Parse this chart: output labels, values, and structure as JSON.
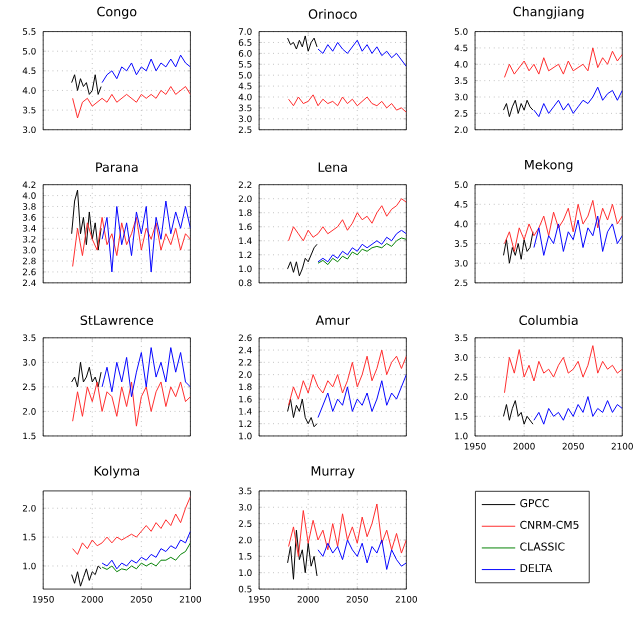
{
  "chart_data": [
    {
      "type": "line",
      "title": "Congo",
      "xlim": [
        1950,
        2100
      ],
      "xticks": [
        1950,
        2000,
        2050,
        2100
      ],
      "ylim": [
        3.0,
        5.5
      ],
      "yticks": [
        {
          "value": 3.0,
          "label": "3.0"
        },
        {
          "value": 3.5,
          "label": "3.5"
        },
        {
          "value": 4.0,
          "label": "4.0"
        },
        {
          "value": 4.5,
          "label": "4.5"
        },
        {
          "value": 5.0,
          "label": "5.0"
        },
        {
          "value": 5.5,
          "label": "5.5"
        }
      ],
      "grid": true,
      "tick_labels": "y",
      "series": [
        {
          "color": "#000000",
          "x": [
            1979,
            1982,
            1985,
            1988,
            1991,
            1994,
            1997,
            2000,
            2003,
            2006,
            2009
          ],
          "values": [
            4.2,
            4.4,
            4.0,
            4.3,
            4.1,
            4.2,
            3.9,
            4.0,
            4.4,
            3.9,
            4.1
          ]
        },
        {
          "color": "#ff2a2a",
          "x": [
            1980,
            1985,
            1990,
            1995,
            2000,
            2005,
            2010,
            2015,
            2020,
            2025,
            2030,
            2035,
            2040,
            2045,
            2050,
            2055,
            2060,
            2065,
            2070,
            2075,
            2080,
            2085,
            2090,
            2095,
            2100
          ],
          "values": [
            3.8,
            3.3,
            3.7,
            3.8,
            3.6,
            3.7,
            3.8,
            3.7,
            3.9,
            3.7,
            3.8,
            3.9,
            3.8,
            3.7,
            3.9,
            3.8,
            3.9,
            3.8,
            4.0,
            3.9,
            4.1,
            3.9,
            4.0,
            4.1,
            3.9
          ]
        },
        {
          "color": "#0000ff",
          "x": [
            2010,
            2015,
            2020,
            2025,
            2030,
            2035,
            2040,
            2045,
            2050,
            2055,
            2060,
            2065,
            2070,
            2075,
            2080,
            2085,
            2090,
            2095,
            2100
          ],
          "values": [
            4.2,
            4.4,
            4.5,
            4.3,
            4.6,
            4.5,
            4.7,
            4.4,
            4.6,
            4.5,
            4.8,
            4.5,
            4.7,
            4.6,
            4.8,
            4.6,
            4.9,
            4.7,
            4.6
          ]
        }
      ]
    },
    {
      "type": "line",
      "title": "Orinoco",
      "xlim": [
        1950,
        2100
      ],
      "xticks": [
        1950,
        2000,
        2050,
        2100
      ],
      "ylim": [
        2.5,
        7.0
      ],
      "yticks": [
        2.5,
        {
          "value": 3.0,
          "label": "3.0"
        },
        3.5,
        {
          "value": 4.0,
          "label": "4.0"
        },
        4.5,
        {
          "value": 5.0,
          "label": "5.0"
        },
        5.5,
        {
          "value": 6.0,
          "label": "6.0"
        },
        6.5,
        {
          "value": 7.0,
          "label": "7.0"
        }
      ],
      "grid": true,
      "tick_labels": "y",
      "series": [
        {
          "color": "#000000",
          "x": [
            1979,
            1982,
            1985,
            1988,
            1991,
            1994,
            1997,
            2000,
            2003,
            2006,
            2009
          ],
          "values": [
            6.7,
            6.4,
            6.5,
            6.2,
            6.6,
            6.3,
            6.8,
            6.1,
            6.5,
            6.7,
            6.3
          ]
        },
        {
          "color": "#ff2a2a",
          "x": [
            1980,
            1985,
            1990,
            1995,
            2000,
            2005,
            2010,
            2015,
            2020,
            2025,
            2030,
            2035,
            2040,
            2045,
            2050,
            2055,
            2060,
            2065,
            2070,
            2075,
            2080,
            2085,
            2090,
            2095,
            2100
          ],
          "values": [
            3.9,
            3.6,
            4.0,
            3.7,
            3.8,
            4.1,
            3.6,
            3.9,
            3.7,
            3.8,
            3.6,
            4.0,
            3.7,
            3.9,
            3.6,
            3.8,
            4.0,
            3.7,
            3.6,
            3.8,
            3.5,
            3.7,
            3.4,
            3.5,
            3.3
          ]
        },
        {
          "color": "#0000ff",
          "x": [
            2010,
            2015,
            2020,
            2025,
            2030,
            2035,
            2040,
            2045,
            2050,
            2055,
            2060,
            2065,
            2070,
            2075,
            2080,
            2085,
            2090,
            2095,
            2100
          ],
          "values": [
            6.2,
            6.0,
            6.4,
            6.1,
            6.5,
            6.2,
            6.0,
            6.3,
            6.6,
            6.1,
            6.4,
            6.0,
            6.3,
            5.9,
            6.1,
            5.8,
            6.0,
            5.7,
            5.4
          ]
        }
      ]
    },
    {
      "type": "line",
      "title": "Changjiang",
      "xlim": [
        1950,
        2100
      ],
      "xticks": [
        1950,
        2000,
        2050,
        2100
      ],
      "ylim": [
        2.0,
        5.0
      ],
      "yticks": [
        {
          "value": 2.0,
          "label": "2.0"
        },
        2.5,
        {
          "value": 3.0,
          "label": "3.0"
        },
        3.5,
        {
          "value": 4.0,
          "label": "4.0"
        },
        4.5,
        {
          "value": 5.0,
          "label": "5.0"
        }
      ],
      "grid": true,
      "tick_labels": "y",
      "series": [
        {
          "color": "#000000",
          "x": [
            1979,
            1982,
            1985,
            1988,
            1991,
            1994,
            1997,
            2000,
            2003,
            2006,
            2009
          ],
          "values": [
            2.6,
            2.8,
            2.4,
            2.7,
            2.9,
            2.5,
            2.8,
            2.6,
            2.9,
            2.7,
            2.6
          ]
        },
        {
          "color": "#ff2a2a",
          "x": [
            1980,
            1985,
            1990,
            1995,
            2000,
            2005,
            2010,
            2015,
            2020,
            2025,
            2030,
            2035,
            2040,
            2045,
            2050,
            2055,
            2060,
            2065,
            2070,
            2075,
            2080,
            2085,
            2090,
            2095,
            2100
          ],
          "values": [
            3.6,
            4.0,
            3.7,
            3.9,
            4.1,
            3.8,
            4.0,
            3.7,
            4.2,
            3.8,
            3.9,
            4.0,
            3.7,
            4.1,
            3.8,
            3.9,
            4.0,
            3.8,
            4.5,
            3.9,
            4.2,
            4.0,
            4.4,
            4.1,
            4.3
          ]
        },
        {
          "color": "#0000ff",
          "x": [
            2010,
            2015,
            2020,
            2025,
            2030,
            2035,
            2040,
            2045,
            2050,
            2055,
            2060,
            2065,
            2070,
            2075,
            2080,
            2085,
            2090,
            2095,
            2100
          ],
          "values": [
            2.6,
            2.4,
            2.8,
            2.5,
            2.7,
            2.9,
            2.6,
            2.8,
            2.5,
            2.7,
            2.9,
            2.8,
            3.0,
            3.3,
            2.9,
            3.1,
            3.2,
            2.9,
            3.2
          ]
        }
      ]
    },
    {
      "type": "line",
      "title": "Parana",
      "xlim": [
        1950,
        2100
      ],
      "xticks": [
        1950,
        2000,
        2050,
        2100
      ],
      "ylim": [
        2.4,
        4.2
      ],
      "yticks": [
        2.4,
        2.6,
        2.8,
        {
          "value": 3.0,
          "label": "3.0"
        },
        3.2,
        3.4,
        3.6,
        3.8,
        {
          "value": 4.0,
          "label": "4.0"
        },
        4.2
      ],
      "grid": true,
      "tick_labels": "y",
      "series": [
        {
          "color": "#000000",
          "x": [
            1979,
            1982,
            1985,
            1988,
            1991,
            1994,
            1997,
            2000,
            2003,
            2006,
            2009
          ],
          "values": [
            3.3,
            3.9,
            4.1,
            3.3,
            3.6,
            3.1,
            3.7,
            3.2,
            3.5,
            3.0,
            3.4
          ]
        },
        {
          "color": "#ff2a2a",
          "x": [
            1980,
            1985,
            1990,
            1995,
            2000,
            2005,
            2010,
            2015,
            2020,
            2025,
            2030,
            2035,
            2040,
            2045,
            2050,
            2055,
            2060,
            2065,
            2070,
            2075,
            2080,
            2085,
            2090,
            2095,
            2100
          ],
          "values": [
            2.7,
            3.4,
            2.9,
            3.5,
            3.2,
            3.0,
            3.6,
            3.1,
            3.3,
            2.9,
            3.5,
            3.1,
            3.3,
            3.6,
            3.0,
            3.4,
            3.2,
            3.5,
            3.0,
            3.3,
            3.1,
            3.4,
            3.0,
            3.3,
            3.2
          ]
        },
        {
          "color": "#0000ff",
          "x": [
            2010,
            2015,
            2020,
            2025,
            2030,
            2035,
            2040,
            2045,
            2050,
            2055,
            2060,
            2065,
            2070,
            2075,
            2080,
            2085,
            2090,
            2095,
            2100
          ],
          "values": [
            3.2,
            3.6,
            2.6,
            3.8,
            3.1,
            3.5,
            2.9,
            3.7,
            3.3,
            3.8,
            2.6,
            3.6,
            3.2,
            3.9,
            3.3,
            3.7,
            3.4,
            3.8,
            3.4
          ]
        }
      ]
    },
    {
      "type": "line",
      "title": "Lena",
      "xlim": [
        1950,
        2100
      ],
      "xticks": [
        1950,
        2000,
        2050,
        2100
      ],
      "ylim": [
        0.8,
        2.2
      ],
      "yticks": [
        0.8,
        {
          "value": 1.0,
          "label": "1.0"
        },
        1.2,
        1.4,
        1.6,
        1.8,
        {
          "value": 2.0,
          "label": "2.0"
        },
        2.2
      ],
      "grid": true,
      "tick_labels": "y",
      "series": [
        {
          "color": "#000000",
          "x": [
            1979,
            1982,
            1985,
            1988,
            1991,
            1994,
            1997,
            2000,
            2003,
            2006,
            2009
          ],
          "values": [
            1.0,
            1.1,
            0.95,
            1.1,
            0.9,
            1.0,
            1.15,
            1.1,
            1.2,
            1.3,
            1.35
          ]
        },
        {
          "color": "#ff2a2a",
          "x": [
            1980,
            1985,
            1990,
            1995,
            2000,
            2005,
            2010,
            2015,
            2020,
            2025,
            2030,
            2035,
            2040,
            2045,
            2050,
            2055,
            2060,
            2065,
            2070,
            2075,
            2080,
            2085,
            2090,
            2095,
            2100
          ],
          "values": [
            1.4,
            1.6,
            1.5,
            1.4,
            1.55,
            1.45,
            1.5,
            1.6,
            1.5,
            1.55,
            1.6,
            1.7,
            1.55,
            1.65,
            1.8,
            1.7,
            1.75,
            1.65,
            1.8,
            1.9,
            1.75,
            1.85,
            1.9,
            2.0,
            1.95
          ]
        },
        {
          "color": "#008000",
          "x": [
            2010,
            2015,
            2020,
            2025,
            2030,
            2035,
            2040,
            2045,
            2050,
            2055,
            2060,
            2065,
            2070,
            2075,
            2080,
            2085,
            2090,
            2095,
            2100
          ],
          "values": [
            1.08,
            1.12,
            1.06,
            1.15,
            1.1,
            1.18,
            1.14,
            1.24,
            1.2,
            1.28,
            1.25,
            1.3,
            1.32,
            1.3,
            1.36,
            1.32,
            1.4,
            1.44,
            1.42
          ]
        },
        {
          "color": "#0000ff",
          "x": [
            2010,
            2015,
            2020,
            2025,
            2030,
            2035,
            2040,
            2045,
            2050,
            2055,
            2060,
            2065,
            2070,
            2075,
            2080,
            2085,
            2090,
            2095,
            2100
          ],
          "values": [
            1.1,
            1.15,
            1.1,
            1.2,
            1.15,
            1.25,
            1.2,
            1.3,
            1.25,
            1.35,
            1.3,
            1.35,
            1.4,
            1.35,
            1.45,
            1.4,
            1.5,
            1.55,
            1.5
          ]
        }
      ]
    },
    {
      "type": "line",
      "title": "Mekong",
      "xlim": [
        1950,
        2100
      ],
      "xticks": [
        1950,
        2000,
        2050,
        2100
      ],
      "ylim": [
        2.5,
        5.0
      ],
      "yticks": [
        2.5,
        {
          "value": 3.0,
          "label": "3.0"
        },
        3.5,
        {
          "value": 4.0,
          "label": "4.0"
        },
        4.5,
        {
          "value": 5.0,
          "label": "5.0"
        }
      ],
      "grid": true,
      "tick_labels": "y",
      "series": [
        {
          "color": "#000000",
          "x": [
            1979,
            1982,
            1985,
            1988,
            1991,
            1994,
            1997,
            2000,
            2003,
            2006,
            2009
          ],
          "values": [
            3.2,
            3.6,
            3.0,
            3.4,
            3.2,
            3.5,
            3.1,
            3.6,
            3.3,
            3.4,
            3.8
          ]
        },
        {
          "color": "#ff2a2a",
          "x": [
            1980,
            1985,
            1990,
            1995,
            2000,
            2005,
            2010,
            2015,
            2020,
            2025,
            2030,
            2035,
            2040,
            2045,
            2050,
            2055,
            2060,
            2065,
            2070,
            2075,
            2080,
            2085,
            2090,
            2095,
            2100
          ],
          "values": [
            3.5,
            3.8,
            3.3,
            3.9,
            3.6,
            4.0,
            3.7,
            3.9,
            4.2,
            3.7,
            4.3,
            3.9,
            4.1,
            4.4,
            3.8,
            4.5,
            4.0,
            4.2,
            4.6,
            3.9,
            4.4,
            4.1,
            4.5,
            4.0,
            4.2
          ]
        },
        {
          "color": "#0000ff",
          "x": [
            2010,
            2015,
            2020,
            2025,
            2030,
            2035,
            2040,
            2045,
            2050,
            2055,
            2060,
            2065,
            2070,
            2075,
            2080,
            2085,
            2090,
            2095,
            2100
          ],
          "values": [
            3.4,
            3.9,
            3.2,
            3.7,
            3.5,
            4.0,
            3.3,
            3.8,
            3.6,
            4.1,
            3.4,
            3.9,
            3.7,
            4.2,
            3.3,
            3.8,
            4.0,
            3.5,
            3.7
          ]
        }
      ]
    },
    {
      "type": "line",
      "title": "StLawrence",
      "xlim": [
        1950,
        2100
      ],
      "xticks": [
        1950,
        2000,
        2050,
        2100
      ],
      "ylim": [
        1.5,
        3.5
      ],
      "yticks": [
        1.5,
        {
          "value": 2.0,
          "label": "2.0"
        },
        2.5,
        {
          "value": 3.0,
          "label": "3.0"
        },
        3.5
      ],
      "grid": true,
      "tick_labels": "y",
      "series": [
        {
          "color": "#000000",
          "x": [
            1979,
            1982,
            1985,
            1988,
            1991,
            1994,
            1997,
            2000,
            2003,
            2006,
            2009
          ],
          "values": [
            2.6,
            2.7,
            2.5,
            3.0,
            2.6,
            2.7,
            2.9,
            2.6,
            2.7,
            2.5,
            2.8
          ]
        },
        {
          "color": "#ff2a2a",
          "x": [
            1980,
            1985,
            1990,
            1995,
            2000,
            2005,
            2010,
            2015,
            2020,
            2025,
            2030,
            2035,
            2040,
            2045,
            2050,
            2055,
            2060,
            2065,
            2070,
            2075,
            2080,
            2085,
            2090,
            2095,
            2100
          ],
          "values": [
            1.8,
            2.4,
            1.9,
            2.5,
            2.2,
            2.6,
            2.0,
            2.4,
            2.3,
            1.9,
            2.5,
            2.1,
            2.6,
            1.7,
            2.3,
            2.5,
            2.0,
            2.4,
            2.6,
            2.1,
            2.5,
            2.3,
            2.6,
            2.2,
            2.3
          ]
        },
        {
          "color": "#0000ff",
          "x": [
            2010,
            2015,
            2020,
            2025,
            2030,
            2035,
            2040,
            2045,
            2050,
            2055,
            2060,
            2065,
            2070,
            2075,
            2080,
            2085,
            2090,
            2095,
            2100
          ],
          "values": [
            2.5,
            2.9,
            2.4,
            3.0,
            2.6,
            3.1,
            2.3,
            2.8,
            3.2,
            2.5,
            3.3,
            2.7,
            3.0,
            2.6,
            3.3,
            2.8,
            3.2,
            2.6,
            2.5
          ]
        }
      ]
    },
    {
      "type": "line",
      "title": "Amur",
      "xlim": [
        1950,
        2100
      ],
      "xticks": [
        1950,
        2000,
        2050,
        2100
      ],
      "ylim": [
        1.0,
        2.6
      ],
      "yticks": [
        {
          "value": 1.0,
          "label": "1.0"
        },
        1.2,
        1.4,
        1.6,
        1.8,
        {
          "value": 2.0,
          "label": "2.0"
        },
        2.2,
        2.4,
        2.6
      ],
      "grid": true,
      "tick_labels": "y",
      "series": [
        {
          "color": "#000000",
          "x": [
            1979,
            1982,
            1985,
            1988,
            1991,
            1994,
            1997,
            2000,
            2003,
            2006,
            2009
          ],
          "values": [
            1.4,
            1.6,
            1.3,
            1.5,
            1.4,
            1.6,
            1.3,
            1.2,
            1.3,
            1.15,
            1.2
          ]
        },
        {
          "color": "#ff2a2a",
          "x": [
            1980,
            1985,
            1990,
            1995,
            2000,
            2005,
            2010,
            2015,
            2020,
            2025,
            2030,
            2035,
            2040,
            2045,
            2050,
            2055,
            2060,
            2065,
            2070,
            2075,
            2080,
            2085,
            2090,
            2095,
            2100
          ],
          "values": [
            1.5,
            1.8,
            1.6,
            1.9,
            1.7,
            2.0,
            1.8,
            1.7,
            1.9,
            1.8,
            2.0,
            1.7,
            1.9,
            2.2,
            1.8,
            2.0,
            2.3,
            1.9,
            2.1,
            2.4,
            2.0,
            2.2,
            2.3,
            2.1,
            2.3
          ]
        },
        {
          "color": "#0000ff",
          "x": [
            2010,
            2015,
            2020,
            2025,
            2030,
            2035,
            2040,
            2045,
            2050,
            2055,
            2060,
            2065,
            2070,
            2075,
            2080,
            2085,
            2090,
            2095,
            2100
          ],
          "values": [
            1.3,
            1.5,
            1.7,
            1.4,
            1.6,
            1.5,
            1.8,
            1.4,
            1.6,
            1.5,
            1.7,
            1.4,
            1.6,
            1.9,
            1.5,
            1.7,
            1.6,
            1.8,
            2.0
          ]
        }
      ]
    },
    {
      "type": "line",
      "title": "Columbia",
      "xlim": [
        1950,
        2100
      ],
      "xticks": [
        1950,
        2000,
        2050,
        2100
      ],
      "ylim": [
        1.0,
        3.5
      ],
      "yticks": [
        {
          "value": 1.0,
          "label": "1.0"
        },
        1.5,
        {
          "value": 2.0,
          "label": "2.0"
        },
        2.5,
        {
          "value": 3.0,
          "label": "3.0"
        },
        3.5
      ],
      "grid": true,
      "series": [
        {
          "color": "#000000",
          "x": [
            1979,
            1982,
            1985,
            1988,
            1991,
            1994,
            1997,
            2000,
            2003,
            2006,
            2009
          ],
          "values": [
            1.5,
            1.8,
            1.4,
            1.7,
            1.9,
            1.5,
            1.6,
            1.3,
            1.5,
            1.4,
            1.3
          ]
        },
        {
          "color": "#ff2a2a",
          "x": [
            1980,
            1985,
            1990,
            1995,
            2000,
            2005,
            2010,
            2015,
            2020,
            2025,
            2030,
            2035,
            2040,
            2045,
            2050,
            2055,
            2060,
            2065,
            2070,
            2075,
            2080,
            2085,
            2090,
            2095,
            2100
          ],
          "values": [
            2.1,
            3.0,
            2.6,
            3.2,
            2.5,
            2.8,
            2.4,
            2.9,
            2.6,
            2.7,
            2.5,
            2.8,
            3.0,
            2.6,
            2.7,
            2.9,
            2.5,
            2.8,
            3.3,
            2.6,
            2.9,
            2.7,
            2.8,
            2.6,
            2.7
          ]
        },
        {
          "color": "#0000ff",
          "x": [
            2010,
            2015,
            2020,
            2025,
            2030,
            2035,
            2040,
            2045,
            2050,
            2055,
            2060,
            2065,
            2070,
            2075,
            2080,
            2085,
            2090,
            2095,
            2100
          ],
          "values": [
            1.4,
            1.6,
            1.3,
            1.7,
            1.5,
            1.6,
            1.4,
            1.7,
            1.5,
            1.8,
            1.6,
            2.0,
            1.5,
            1.7,
            1.6,
            1.9,
            1.6,
            1.8,
            1.7
          ]
        }
      ]
    },
    {
      "type": "line",
      "title": "Kolyma",
      "xlim": [
        1950,
        2100
      ],
      "xticks": [
        1950,
        2000,
        2050,
        2100
      ],
      "ylim": [
        0.6,
        2.3
      ],
      "yticks": [
        {
          "value": 1.0,
          "label": "1.0"
        },
        1.5,
        {
          "value": 2.0,
          "label": "2.0"
        }
      ],
      "grid": true,
      "legend": "right",
      "series": [
        {
          "name": "GPCC",
          "color": "#000000",
          "x": [
            1979,
            1982,
            1985,
            1988,
            1991,
            1994,
            1997,
            2000,
            2003,
            2006,
            2009
          ],
          "values": [
            0.85,
            0.7,
            0.9,
            0.65,
            0.8,
            0.95,
            0.75,
            0.9,
            0.85,
            1.0,
            0.95
          ]
        },
        {
          "name": "CNRM-CM5",
          "color": "#ff2a2a",
          "x": [
            1980,
            1985,
            1990,
            1995,
            2000,
            2005,
            2010,
            2015,
            2020,
            2025,
            2030,
            2035,
            2040,
            2045,
            2050,
            2055,
            2060,
            2065,
            2070,
            2075,
            2080,
            2085,
            2090,
            2095,
            2100
          ],
          "values": [
            1.3,
            1.2,
            1.4,
            1.3,
            1.45,
            1.35,
            1.4,
            1.5,
            1.4,
            1.5,
            1.45,
            1.5,
            1.55,
            1.5,
            1.6,
            1.7,
            1.6,
            1.75,
            1.65,
            1.8,
            1.7,
            1.9,
            1.75,
            2.0,
            2.2
          ]
        },
        {
          "name": "CLASSIC",
          "color": "#008000",
          "x": [
            2010,
            2015,
            2020,
            2025,
            2030,
            2035,
            2040,
            2045,
            2050,
            2055,
            2060,
            2065,
            2070,
            2075,
            2080,
            2085,
            2090,
            2095,
            2100
          ],
          "values": [
            0.98,
            0.94,
            1.0,
            0.9,
            0.95,
            0.93,
            1.0,
            0.95,
            1.05,
            1.0,
            1.05,
            1.0,
            1.1,
            1.1,
            1.15,
            1.1,
            1.2,
            1.25,
            1.4
          ]
        },
        {
          "name": "DELTA",
          "color": "#0000ff",
          "x": [
            2010,
            2015,
            2020,
            2025,
            2030,
            2035,
            2040,
            2045,
            2050,
            2055,
            2060,
            2065,
            2070,
            2075,
            2080,
            2085,
            2090,
            2095,
            2100
          ],
          "values": [
            1.05,
            1.0,
            1.1,
            0.95,
            1.05,
            1.0,
            1.1,
            1.05,
            1.15,
            1.1,
            1.2,
            1.15,
            1.3,
            1.25,
            1.35,
            1.3,
            1.45,
            1.4,
            1.6
          ]
        }
      ]
    },
    {
      "type": "line",
      "title": "Murray",
      "xlim": [
        1950,
        2100
      ],
      "xticks": [
        1950,
        2000,
        2050,
        2100
      ],
      "ylim": [
        0.5,
        3.5
      ],
      "yticks": [
        0.5,
        {
          "value": 1.0,
          "label": "1.0"
        },
        1.5,
        {
          "value": 2.0,
          "label": "2.0"
        },
        2.5,
        {
          "value": 3.0,
          "label": "3.0"
        },
        3.5
      ],
      "grid": true,
      "series": [
        {
          "color": "#000000",
          "x": [
            1979,
            1982,
            1985,
            1988,
            1991,
            1994,
            1997,
            2000,
            2003,
            2006,
            2009
          ],
          "values": [
            1.3,
            1.8,
            0.8,
            2.3,
            1.4,
            1.7,
            1.0,
            1.9,
            1.2,
            1.5,
            0.9
          ]
        },
        {
          "color": "#ff2a2a",
          "x": [
            1980,
            1985,
            1990,
            1995,
            2000,
            2005,
            2010,
            2015,
            2020,
            2025,
            2030,
            2035,
            2040,
            2045,
            2050,
            2055,
            2060,
            2065,
            2070,
            2075,
            2080,
            2085,
            2090,
            2095,
            2100
          ],
          "values": [
            1.8,
            2.4,
            1.5,
            2.9,
            1.9,
            2.6,
            2.0,
            2.3,
            1.7,
            2.5,
            1.8,
            2.8,
            2.0,
            2.4,
            1.9,
            2.7,
            2.1,
            2.5,
            3.1,
            1.9,
            2.3,
            1.7,
            2.2,
            1.6,
            2.0
          ]
        },
        {
          "color": "#0000ff",
          "x": [
            2010,
            2015,
            2020,
            2025,
            2030,
            2035,
            2040,
            2045,
            2050,
            2055,
            2060,
            2065,
            2070,
            2075,
            2080,
            2085,
            2090,
            2095,
            2100
          ],
          "values": [
            1.7,
            1.5,
            1.9,
            1.6,
            1.8,
            1.4,
            2.0,
            1.7,
            1.5,
            1.9,
            1.3,
            1.8,
            1.6,
            2.0,
            1.1,
            1.7,
            1.4,
            1.2,
            1.3
          ]
        }
      ]
    }
  ]
}
